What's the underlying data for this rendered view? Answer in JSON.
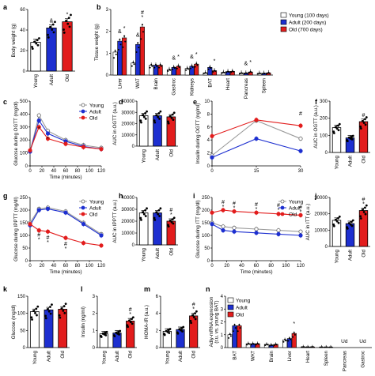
{
  "colors": {
    "young": "#ffffff",
    "adult": "#1d2fd0",
    "old": "#e21c1c",
    "line_young": "#9a9a9a"
  },
  "groups": [
    "Young",
    "Adult",
    "Old"
  ],
  "chart_data": [
    {
      "id": "a",
      "type": "bar",
      "ylabel": "Body weight (g)",
      "categories": [
        "Young",
        "Adult",
        "Old"
      ],
      "values": [
        28,
        42,
        48
      ],
      "ylim": [
        0,
        60
      ],
      "yticks": [
        0,
        20,
        40,
        60
      ],
      "annotations": [
        "",
        "&",
        "*"
      ]
    },
    {
      "id": "b",
      "type": "bar",
      "ylabel": "Tissue weight (g)",
      "legend": [
        "Young (100 days)",
        "Adult (200 days)",
        "Old (700 days)"
      ],
      "categories": [
        "Liver",
        "WAT",
        "Brain",
        "Gastroc",
        "Kidneys",
        "BAT",
        "Heart",
        "Pancreas",
        "Spleen"
      ],
      "series": [
        {
          "name": "Young (100 days)",
          "values": [
            1.05,
            0.55,
            0.45,
            0.25,
            0.3,
            0.1,
            0.12,
            0.09,
            0.08
          ]
        },
        {
          "name": "Adult (200 days)",
          "values": [
            1.55,
            1.4,
            0.45,
            0.35,
            0.4,
            0.35,
            0.16,
            0.09,
            0.08
          ]
        },
        {
          "name": "Old (700 days)",
          "values": [
            1.7,
            2.2,
            0.45,
            0.4,
            0.5,
            0.2,
            0.17,
            0.14,
            0.1
          ]
        }
      ],
      "ylim": [
        0,
        3
      ],
      "yticks": [
        0,
        1,
        2,
        3
      ],
      "annotations": {
        "Liver": [
          "",
          "&",
          "*"
        ],
        "WAT": [
          "",
          "&",
          "#\n*"
        ],
        "Gastroc": [
          "",
          "&",
          "*"
        ],
        "Kidneys": [
          "",
          "&",
          "*"
        ],
        "BAT": [
          "",
          "",
          "*"
        ],
        "Pancreas": [
          "",
          "&",
          "*"
        ]
      }
    },
    {
      "id": "c",
      "type": "line",
      "ylabel": "Glucose during OGTT (mg/dl)",
      "xlabel": "Time (minutes)",
      "x": [
        0,
        15,
        30,
        60,
        90,
        120
      ],
      "xticks": [
        0,
        20,
        40,
        60,
        80,
        100,
        120
      ],
      "ylim": [
        0,
        500
      ],
      "yticks": [
        0,
        100,
        200,
        300,
        400,
        500
      ],
      "series": [
        {
          "name": "Young",
          "values": [
            110,
            390,
            270,
            200,
            160,
            140
          ]
        },
        {
          "name": "Adult",
          "values": [
            110,
            350,
            250,
            190,
            150,
            130
          ]
        },
        {
          "name": "Old",
          "values": [
            120,
            300,
            210,
            170,
            145,
            130
          ]
        }
      ],
      "annotations": [
        {
          "x": 15,
          "y": 275,
          "text": "*"
        },
        {
          "x": 30,
          "y": 195,
          "text": "*"
        }
      ]
    },
    {
      "id": "d",
      "type": "bar",
      "ylabel": "AUC in OGTT (a.u.)",
      "categories": [
        "Young",
        "Adult",
        "Old"
      ],
      "values": [
        27000,
        27000,
        26000
      ],
      "ylim": [
        0,
        40000
      ],
      "yticks": [
        0,
        10000,
        20000,
        30000,
        40000
      ],
      "annotations": [
        "",
        "",
        ""
      ]
    },
    {
      "id": "e",
      "type": "line",
      "ylabel": "Insulin during OGTT (ng/ml)",
      "x": [
        0,
        15,
        30
      ],
      "xticks": [
        0,
        15,
        30
      ],
      "ylim": [
        0,
        10
      ],
      "yticks": [
        0,
        2,
        4,
        6,
        8,
        10
      ],
      "series": [
        {
          "name": "Young",
          "values": [
            1.6,
            7.0,
            4.2
          ]
        },
        {
          "name": "Adult",
          "values": [
            1.3,
            4.2,
            2.3
          ]
        },
        {
          "name": "Old",
          "values": [
            4.6,
            7.1,
            6.2
          ]
        }
      ],
      "annotations": [
        {
          "x": 30,
          "y": 7.8,
          "text": "#"
        }
      ]
    },
    {
      "id": "f",
      "type": "bar",
      "ylabel": "AUC in OGTT (a.u.)",
      "categories": [
        "Young",
        "Adult",
        "Old"
      ],
      "values": [
        145,
        85,
        180
      ],
      "ylim": [
        0,
        300
      ],
      "yticks": [
        0,
        100,
        200,
        300
      ],
      "annotations": [
        "",
        "",
        "#"
      ]
    },
    {
      "id": "g",
      "type": "line",
      "ylabel": "Glucose during IPPTT (mg/dl)",
      "xlabel": "Time (minutes)",
      "x": [
        0,
        15,
        30,
        60,
        90,
        120
      ],
      "xticks": [
        0,
        20,
        40,
        60,
        80,
        100,
        120
      ],
      "ylim": [
        0,
        250
      ],
      "yticks": [
        0,
        50,
        100,
        150,
        200,
        250
      ],
      "series": [
        {
          "name": "Young",
          "values": [
            150,
            205,
            210,
            195,
            150,
            105
          ]
        },
        {
          "name": "Adult",
          "values": [
            140,
            200,
            205,
            190,
            145,
            100
          ]
        },
        {
          "name": "Old",
          "values": [
            145,
            120,
            115,
            90,
            70,
            60
          ]
        }
      ],
      "annotations": [
        {
          "x": 15,
          "y": 95,
          "text": "#\n*"
        },
        {
          "x": 30,
          "y": 85,
          "text": "#\n*"
        },
        {
          "x": 60,
          "y": 60,
          "text": "#\n*"
        }
      ]
    },
    {
      "id": "h",
      "type": "bar",
      "ylabel": "AUC in IPPTT (a.u.)",
      "categories": [
        "Young",
        "Adult",
        "Old"
      ],
      "values": [
        27000,
        27000,
        20000
      ],
      "ylim": [
        0,
        40000
      ],
      "yticks": [
        0,
        10000,
        20000,
        30000,
        40000
      ],
      "annotations": [
        "",
        "",
        "#\n*"
      ]
    },
    {
      "id": "i",
      "type": "line",
      "ylabel": "Glucose during ITT (mg/dl)",
      "xlabel": "Time (minutes)",
      "x": [
        0,
        15,
        30,
        60,
        90,
        120
      ],
      "xticks": [
        0,
        20,
        40,
        60,
        80,
        100,
        120
      ],
      "ylim": [
        0,
        250
      ],
      "yticks": [
        0,
        50,
        100,
        150,
        200,
        250
      ],
      "series": [
        {
          "name": "Young",
          "values": [
            150,
            135,
            130,
            125,
            120,
            115
          ]
        },
        {
          "name": "Adult",
          "values": [
            145,
            120,
            115,
            110,
            105,
            100
          ]
        },
        {
          "name": "Old",
          "values": [
            190,
            200,
            195,
            190,
            185,
            180
          ]
        }
      ],
      "annotations": [
        {
          "x": 15,
          "y": 225,
          "text": "#\n*"
        },
        {
          "x": 30,
          "y": 220,
          "text": "#\n*"
        },
        {
          "x": 60,
          "y": 215,
          "text": "#\n*"
        },
        {
          "x": 90,
          "y": 212,
          "text": "#\n*"
        },
        {
          "x": 120,
          "y": 205,
          "text": "#\n*"
        }
      ]
    },
    {
      "id": "j",
      "type": "bar",
      "ylabel": "AUC in ITT (a.u.)",
      "categories": [
        "Young",
        "Adult",
        "Old"
      ],
      "values": [
        16000,
        14000,
        22000
      ],
      "ylim": [
        0,
        30000
      ],
      "yticks": [
        0,
        10000,
        20000,
        30000
      ],
      "annotations": [
        "",
        "",
        "#\n*"
      ]
    },
    {
      "id": "k",
      "type": "bar",
      "ylabel": "Glucose (mg/dl)",
      "categories": [
        "Young",
        "Adult",
        "Old"
      ],
      "values": [
        105,
        110,
        112
      ],
      "ylim": [
        0,
        150
      ],
      "yticks": [
        0,
        50,
        100,
        150
      ],
      "annotations": [
        "",
        "",
        ""
      ]
    },
    {
      "id": "l",
      "type": "bar",
      "ylabel": "Insulin (ng/ml)",
      "categories": [
        "Young",
        "Adult",
        "Old"
      ],
      "values": [
        0.8,
        0.85,
        1.55
      ],
      "ylim": [
        0,
        3
      ],
      "yticks": [
        0,
        1,
        2,
        3
      ],
      "annotations": [
        "",
        "",
        "#\n*"
      ]
    },
    {
      "id": "m",
      "type": "bar",
      "ylabel": "HOMA-IR (a.u.)",
      "categories": [
        "Young",
        "Adult",
        "Old"
      ],
      "values": [
        1.9,
        2.1,
        3.7
      ],
      "ylim": [
        0,
        6
      ],
      "yticks": [
        0,
        2,
        4,
        6
      ],
      "annotations": [
        "",
        "",
        "#\n*"
      ]
    },
    {
      "id": "n",
      "type": "bar",
      "ylabel": "Adiy-mRNA expression\n(r.u. vs. young BAT)",
      "categories": [
        "BAT",
        "WAT",
        "Brain",
        "Liver",
        "Heart",
        "Spleen",
        "Pancreas",
        "Gastroc"
      ],
      "series": [
        {
          "name": "Young",
          "values": [
            1.0,
            0.3,
            0.25,
            0.6,
            0.05,
            0.03,
            0,
            0
          ]
        },
        {
          "name": "Adult",
          "values": [
            1.7,
            0.3,
            0.2,
            0.7,
            0.04,
            0.03,
            0,
            0
          ]
        },
        {
          "name": "Old",
          "values": [
            1.7,
            0.3,
            0.25,
            1.1,
            0.05,
            0.03,
            0,
            0
          ]
        }
      ],
      "ylim": [
        0,
        4
      ],
      "yticks": [
        0,
        1,
        2,
        3,
        4
      ],
      "annotations": {
        "Liver": [
          "",
          "",
          "*"
        ],
        "Pancreas": [
          "Ud"
        ],
        "Gastroc": [
          "Ud"
        ]
      }
    }
  ]
}
